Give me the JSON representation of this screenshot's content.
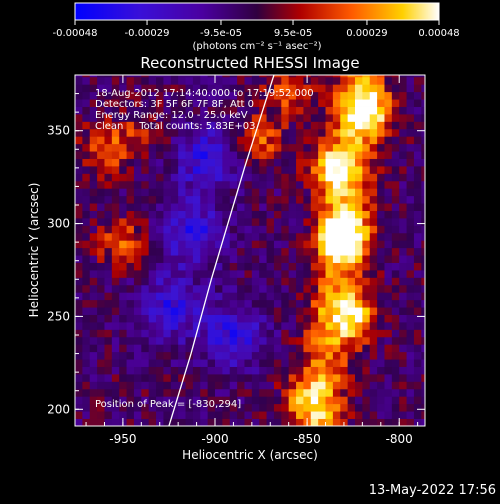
{
  "colorbar": {
    "tick_labels": [
      "-0.00048",
      "-0.00029",
      "-9.5e-05",
      "9.5e-05",
      "0.00029",
      "0.00048"
    ],
    "tick_values": [
      -0.00048,
      -0.00029,
      -9.5e-05,
      9.5e-05,
      0.00029,
      0.00048
    ],
    "range": [
      -0.00048,
      0.00048
    ],
    "units_label": "(photons cm⁻² s⁻¹ asec⁻²)"
  },
  "title": "Reconstructed RHESSI Image",
  "info": {
    "time_range": "18-Aug-2012 17:14:40.000 to 17:19:52.000",
    "detectors": "Detectors: 3F 5F 6F 7F 8F, Att 0",
    "energy_range": "Energy Range: 12.0 - 25.0 keV",
    "clean_counts": "Clean     Total counts: 5.83E+03",
    "peak": "Position of Peak = [-830,294]"
  },
  "footer_timestamp": "13-May-2022 17:56",
  "colors": {
    "background": "#000000",
    "limb_line": "#ffffff",
    "colormap": [
      "#0000ff",
      "#4a00b0",
      "#400068",
      "#c00000",
      "#ff6a00",
      "#ffd000",
      "#ffffff"
    ]
  },
  "chart_data": {
    "type": "heatmap",
    "title": "Reconstructed RHESSI Image",
    "xlabel": "Heliocentric X (arcsec)",
    "ylabel": "Heliocentric Y (arcsec)",
    "xlim": [
      -976,
      -786
    ],
    "ylim": [
      191,
      380
    ],
    "x_ticks": [
      -950,
      -900,
      -850,
      -800
    ],
    "y_ticks": [
      200,
      250,
      300,
      350
    ],
    "x_tick_labels": [
      "-950",
      "-900",
      "-850",
      "-800"
    ],
    "y_tick_labels": [
      "200",
      "250",
      "300",
      "350"
    ],
    "grid": false,
    "colorbar_range": [
      -0.00048,
      0.00048
    ],
    "colormap": "blue-purple-red-yellow-white",
    "peak_position": [
      -830,
      294
    ],
    "total_counts": 5830,
    "energy_range_keV": [
      12.0,
      25.0
    ],
    "limb_curve": {
      "x": [
        -925,
        -913,
        -902,
        -893,
        -884,
        -876,
        -868
      ],
      "y": [
        191,
        230,
        270,
        300,
        330,
        355,
        380
      ]
    },
    "bright_regions": [
      {
        "x": -830,
        "y": 294,
        "level": "peak"
      },
      {
        "x": -825,
        "y": 250,
        "level": "high"
      },
      {
        "x": -835,
        "y": 330,
        "level": "high"
      },
      {
        "x": -816,
        "y": 360,
        "level": "high"
      },
      {
        "x": -850,
        "y": 205,
        "level": "medium"
      },
      {
        "x": -875,
        "y": 345,
        "level": "medium"
      },
      {
        "x": -860,
        "y": 372,
        "level": "medium"
      },
      {
        "x": -960,
        "y": 340,
        "level": "medium"
      },
      {
        "x": -950,
        "y": 290,
        "level": "medium"
      },
      {
        "x": -940,
        "y": 350,
        "level": "low"
      }
    ],
    "dim_regions": [
      {
        "x": -912,
        "y": 295
      },
      {
        "x": -925,
        "y": 255
      },
      {
        "x": -890,
        "y": 240
      },
      {
        "x": -905,
        "y": 335
      }
    ]
  }
}
